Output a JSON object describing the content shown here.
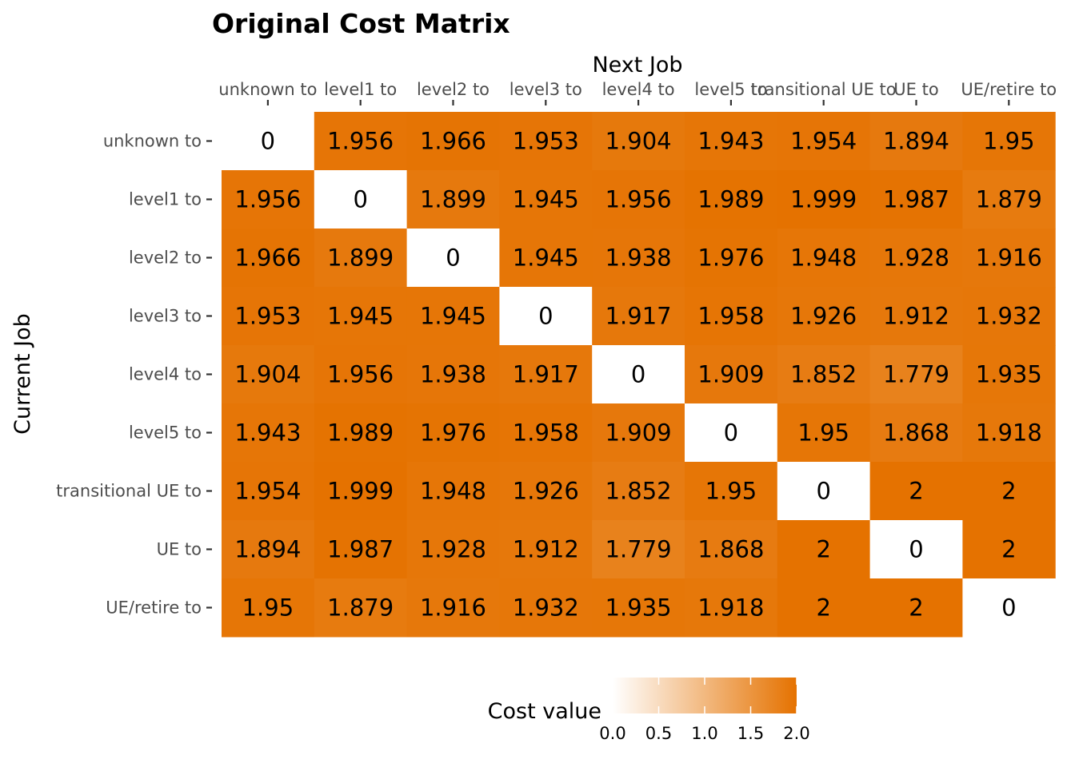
{
  "chart_data": {
    "type": "heatmap",
    "title": "Original Cost Matrix",
    "xlabel": "Next Job",
    "ylabel": "Current Job",
    "x_position": "top",
    "x_categories": [
      "unknown to",
      "level1 to",
      "level2 to",
      "level3 to",
      "level4 to",
      "level5 to",
      "transitional UE to",
      "UE to",
      "UE/retire to"
    ],
    "y_categories": [
      "unknown to",
      "level1 to",
      "level2 to",
      "level3 to",
      "level4 to",
      "level5 to",
      "transitional UE to",
      "UE to",
      "UE/retire to"
    ],
    "values": [
      [
        0,
        1.956,
        1.966,
        1.953,
        1.904,
        1.943,
        1.954,
        1.894,
        1.95
      ],
      [
        1.956,
        0,
        1.899,
        1.945,
        1.956,
        1.989,
        1.999,
        1.987,
        1.879
      ],
      [
        1.966,
        1.899,
        0,
        1.945,
        1.938,
        1.976,
        1.948,
        1.928,
        1.916
      ],
      [
        1.953,
        1.945,
        1.945,
        0,
        1.917,
        1.958,
        1.926,
        1.912,
        1.932
      ],
      [
        1.904,
        1.956,
        1.938,
        1.917,
        0,
        1.909,
        1.852,
        1.779,
        1.935
      ],
      [
        1.943,
        1.989,
        1.976,
        1.958,
        1.909,
        0,
        1.95,
        1.868,
        1.918
      ],
      [
        1.954,
        1.999,
        1.948,
        1.926,
        1.852,
        1.95,
        0,
        2,
        2
      ],
      [
        1.894,
        1.987,
        1.928,
        1.912,
        1.779,
        1.868,
        2,
        0,
        2
      ],
      [
        1.95,
        1.879,
        1.916,
        1.932,
        1.935,
        1.918,
        2,
        2,
        0
      ]
    ],
    "value_labels": [
      [
        "0",
        "1.956",
        "1.966",
        "1.953",
        "1.904",
        "1.943",
        "1.954",
        "1.894",
        "1.95"
      ],
      [
        "1.956",
        "0",
        "1.899",
        "1.945",
        "1.956",
        "1.989",
        "1.999",
        "1.987",
        "1.879"
      ],
      [
        "1.966",
        "1.899",
        "0",
        "1.945",
        "1.938",
        "1.976",
        "1.948",
        "1.928",
        "1.916"
      ],
      [
        "1.953",
        "1.945",
        "1.945",
        "0",
        "1.917",
        "1.958",
        "1.926",
        "1.912",
        "1.932"
      ],
      [
        "1.904",
        "1.956",
        "1.938",
        "1.917",
        "0",
        "1.909",
        "1.852",
        "1.779",
        "1.935"
      ],
      [
        "1.943",
        "1.989",
        "1.976",
        "1.958",
        "1.909",
        "0",
        "1.95",
        "1.868",
        "1.918"
      ],
      [
        "1.954",
        "1.999",
        "1.948",
        "1.926",
        "1.852",
        "1.95",
        "0",
        "2",
        "2"
      ],
      [
        "1.894",
        "1.987",
        "1.928",
        "1.912",
        "1.779",
        "1.868",
        "2",
        "0",
        "2"
      ],
      [
        "1.95",
        "1.879",
        "1.916",
        "1.932",
        "1.935",
        "1.918",
        "2",
        "2",
        "0"
      ]
    ],
    "color_scale": {
      "low_color": "#ffffff",
      "high_color": "#e57200",
      "domain": [
        0,
        2
      ]
    },
    "legend": {
      "title": "Cost value",
      "position": "bottom",
      "ticks": [
        "0.0",
        "0.5",
        "1.0",
        "1.5",
        "2.0"
      ],
      "tick_values": [
        0,
        0.5,
        1.0,
        1.5,
        2.0
      ]
    },
    "grid": false
  }
}
